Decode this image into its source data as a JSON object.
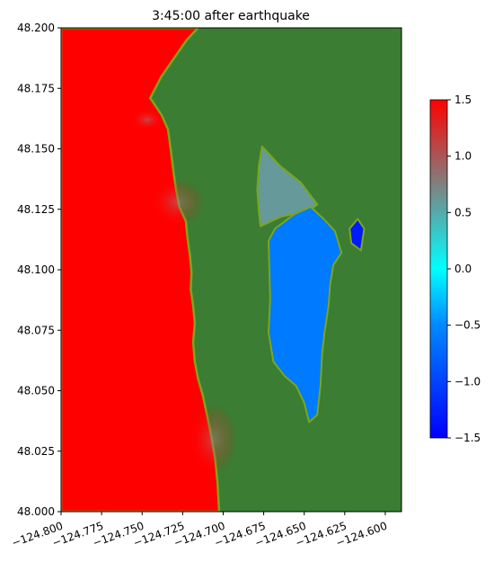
{
  "chart_data": {
    "type": "heatmap",
    "title": "3:45:00 after earthquake",
    "xlabel": "",
    "ylabel": "",
    "xlim": [
      -124.8,
      -124.59
    ],
    "ylim": [
      48.0,
      48.2
    ],
    "x_ticks": [
      -124.8,
      -124.775,
      -124.75,
      -124.725,
      -124.7,
      -124.675,
      -124.65,
      -124.625,
      -124.6
    ],
    "x_tick_labels": [
      "−124.800",
      "−124.775",
      "−124.750",
      "−124.725",
      "−124.700",
      "−124.675",
      "−124.650",
      "−124.625",
      "−124.600"
    ],
    "y_ticks": [
      48.0,
      48.025,
      48.05,
      48.075,
      48.1,
      48.125,
      48.15,
      48.175,
      48.2
    ],
    "y_tick_labels": [
      "48.000",
      "48.025",
      "48.050",
      "48.075",
      "48.100",
      "48.125",
      "48.150",
      "48.175",
      "48.200"
    ],
    "colorbar": {
      "min": -1.5,
      "max": 1.5,
      "ticks": [
        -1.5,
        -1.0,
        -0.5,
        0.0,
        0.5,
        1.0,
        1.5
      ],
      "tick_labels": [
        "−1.5",
        "−1.0",
        "−0.5",
        "0.0",
        "0.5",
        "1.0",
        "1.5"
      ],
      "colors": [
        {
          "value": -1.5,
          "color": "#0000ff"
        },
        {
          "value": -0.5,
          "color": "#0088ff"
        },
        {
          "value": 0.0,
          "color": "#00ffff"
        },
        {
          "value": 0.75,
          "color": "#808080"
        },
        {
          "value": 1.5,
          "color": "#ff0000"
        }
      ]
    },
    "land_color": "#3a7d33",
    "shore_color": "#7aa61c",
    "regions": [
      {
        "name": "ocean",
        "value": 1.5,
        "polygon": [
          [
            -124.8,
            48.2
          ],
          [
            -124.7155,
            48.2
          ],
          [
            -124.7225,
            48.195
          ],
          [
            -124.738,
            48.18
          ],
          [
            -124.745,
            48.171
          ],
          [
            -124.738,
            48.164
          ],
          [
            -124.734,
            48.158
          ],
          [
            -124.732,
            48.148
          ],
          [
            -124.7305,
            48.14
          ],
          [
            -124.729,
            48.133
          ],
          [
            -124.727,
            48.126
          ],
          [
            -124.723,
            48.12
          ],
          [
            -124.722,
            48.113
          ],
          [
            -124.7205,
            48.106
          ],
          [
            -124.7195,
            48.099
          ],
          [
            -124.72,
            48.092
          ],
          [
            -124.7185,
            48.085
          ],
          [
            -124.7175,
            48.078
          ],
          [
            -124.7185,
            48.07
          ],
          [
            -124.7175,
            48.062
          ],
          [
            -124.7155,
            48.055
          ],
          [
            -124.7125,
            48.048
          ],
          [
            -124.71,
            48.04
          ],
          [
            -124.7075,
            48.032
          ],
          [
            -124.705,
            48.022
          ],
          [
            -124.7035,
            48.012
          ],
          [
            -124.7025,
            48.0
          ],
          [
            -124.8,
            48.0
          ]
        ]
      },
      {
        "name": "bay-upper",
        "value": 0.6,
        "polygon": [
          [
            -124.676,
            48.151
          ],
          [
            -124.665,
            48.143
          ],
          [
            -124.652,
            48.136
          ],
          [
            -124.642,
            48.127
          ],
          [
            -124.648,
            48.124
          ],
          [
            -124.664,
            48.122
          ],
          [
            -124.677,
            48.118
          ],
          [
            -124.678,
            48.124
          ],
          [
            -124.679,
            48.133
          ],
          [
            -124.678,
            48.143
          ]
        ]
      },
      {
        "name": "bay-main",
        "value": -0.6,
        "polygon": [
          [
            -124.668,
            48.117
          ],
          [
            -124.656,
            48.123
          ],
          [
            -124.646,
            48.126
          ],
          [
            -124.638,
            48.121
          ],
          [
            -124.631,
            48.116
          ],
          [
            -124.627,
            48.107
          ],
          [
            -124.632,
            48.102
          ],
          [
            -124.634,
            48.094
          ],
          [
            -124.635,
            48.085
          ],
          [
            -124.6375,
            48.074
          ],
          [
            -124.639,
            48.065
          ],
          [
            -124.64,
            48.052
          ],
          [
            -124.642,
            48.04
          ],
          [
            -124.647,
            48.037
          ],
          [
            -124.65,
            48.045
          ],
          [
            -124.655,
            48.052
          ],
          [
            -124.662,
            48.056
          ],
          [
            -124.669,
            48.062
          ],
          [
            -124.672,
            48.074
          ],
          [
            -124.671,
            48.088
          ],
          [
            -124.6715,
            48.1
          ],
          [
            -124.672,
            48.112
          ]
        ]
      },
      {
        "name": "bay-east",
        "value": -1.3,
        "polygon": [
          [
            -124.622,
            48.117
          ],
          [
            -124.617,
            48.121
          ],
          [
            -124.613,
            48.117
          ],
          [
            -124.615,
            48.108
          ],
          [
            -124.621,
            48.111
          ]
        ]
      }
    ]
  }
}
